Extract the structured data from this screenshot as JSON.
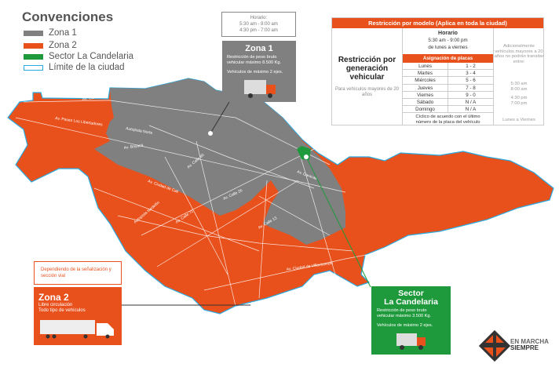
{
  "legend": {
    "title": "Convenciones",
    "items": [
      {
        "label": "Zona 1",
        "color": "#808080"
      },
      {
        "label": "Zona 2",
        "color": "#e8501c"
      },
      {
        "label": "Sector La Candelaria",
        "color": "#1e9a3c"
      },
      {
        "label": "Límite de la ciudad",
        "color": "#29abe2"
      }
    ]
  },
  "horario": {
    "title": "Horario:",
    "line1": "5:30 am - 8:00 am",
    "line2": "4:30 pm - 7:00 am"
  },
  "zona1": {
    "title": "Zona 1",
    "text1": "Restricción de peso bruto vehicular máximo 8.500 Kg.",
    "text2": "Vehículos de máximo 2 ejes.",
    "icon": "truck-icon"
  },
  "table": {
    "title": "Restricción por modelo (Aplica en toda la ciudad)",
    "left_title": "Restricción por generación vehicular",
    "left_sub": "Para vehículos mayores de 20 años",
    "horario_title": "Horario",
    "horario_time": "5:30 am - 9:00 pm",
    "horario_days": "de lunes a viernes",
    "plates_header": "Asignación de placas",
    "rows": [
      {
        "day": "Lunes",
        "plates": "1 - 2"
      },
      {
        "day": "Martes",
        "plates": "3 - 4"
      },
      {
        "day": "Miércoles",
        "plates": "5 - 6"
      },
      {
        "day": "Jueves",
        "plates": "7 - 8"
      },
      {
        "day": "Viernes",
        "plates": "9 - 0"
      },
      {
        "day": "Sábado",
        "plates": "N / A"
      },
      {
        "day": "Domingo",
        "plates": "N / A"
      }
    ],
    "footer": "Cíclico de acuerdo con el último número de la placa del vehículo",
    "right_text": "Adicionalmente vehículos mayores a 20 años no podrán transitar entre:",
    "right_t1a": "5:30 am",
    "right_t1b": "8:00 am",
    "right_t2a": "4:30 pm",
    "right_t2b": "7:00 pm",
    "right_days": "Lunes a Viernes"
  },
  "zona2_note": "Dependiendo de la señalización y sección vial",
  "zona2": {
    "title": "Zona 2",
    "text1": "Libre circulación",
    "text2": "Todo tipo de vehículos",
    "icon": "semi-truck-icon"
  },
  "candelaria": {
    "title1": "Sector",
    "title2": "La Candelaria",
    "text1": "Restricción de peso bruto vehicular máximo 3.500 Kg.",
    "text2": "Vehículos de máximo 2 ejes.",
    "icon": "truck-icon"
  },
  "logo": {
    "line1": "EN MARCHA",
    "line2": "SIEMPRE"
  },
  "streets": [
    "Av. Paseo Los Libertadores",
    "Av. Carrera 7",
    "Autopista Norte",
    "Av. Boyacá",
    "Av. Calle 80",
    "Av. Calle 26",
    "Av. Ciudad de Cali",
    "Autopista Medellín",
    "Av. Ciudad de Villavicencio",
    "Av. Caracas",
    "Av. Calle 13",
    "Av. Calle 72"
  ]
}
